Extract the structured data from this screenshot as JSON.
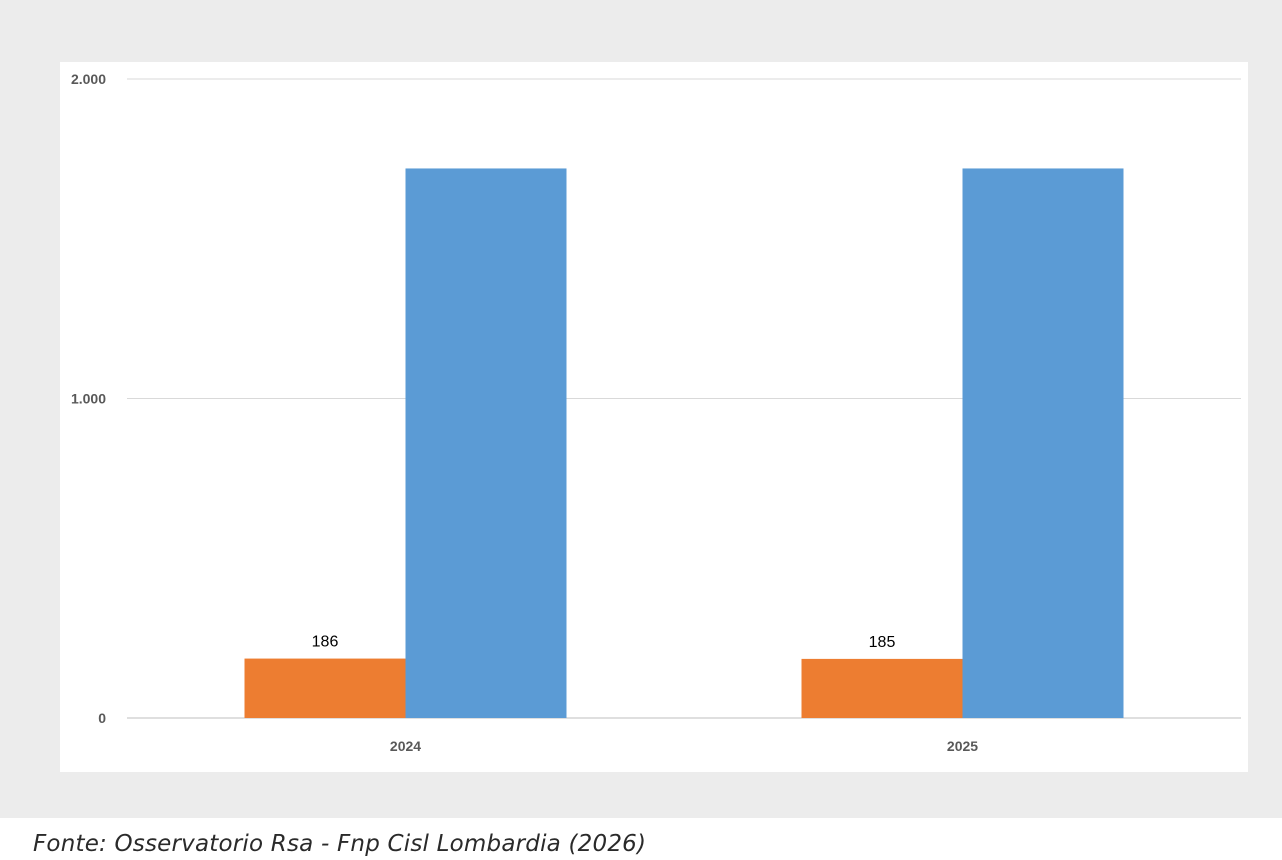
{
  "chart_data": {
    "type": "bar",
    "categories": [
      "2024",
      "2025"
    ],
    "series": [
      {
        "color": "#ed7d31",
        "values": [
          186,
          185
        ],
        "data_labels": [
          "186",
          "185"
        ]
      },
      {
        "color": "#5b9bd5",
        "values": [
          1720,
          1720
        ]
      }
    ],
    "y_ticks": [
      {
        "value": 0,
        "label": "0"
      },
      {
        "value": 1000,
        "label": "1.000"
      },
      {
        "value": 2000,
        "label": "2.000"
      }
    ],
    "ylim": [
      0,
      2000
    ],
    "grid": true,
    "legend": "none"
  },
  "caption": "Fonte: Osservatorio Rsa - Fnp Cisl Lombardia (2026)"
}
